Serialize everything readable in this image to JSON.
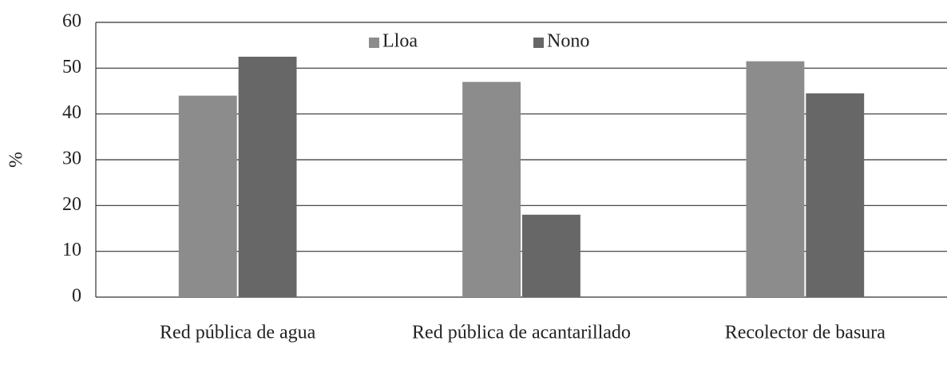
{
  "chart_data": {
    "type": "bar",
    "y_label": "%",
    "categories": [
      "Red pública de agua",
      "Red pública de acantarillado",
      "Recolector de basura"
    ],
    "series": [
      {
        "name": "Lloa",
        "color": "#8c8c8c",
        "values": [
          44,
          47,
          51.5
        ]
      },
      {
        "name": "Nono",
        "color": "#676767",
        "values": [
          52.5,
          18,
          44.5
        ]
      }
    ],
    "ylim": [
      0,
      60
    ],
    "yticks": [
      0,
      10,
      20,
      30,
      40,
      50,
      60
    ],
    "grid": true,
    "legend": "top"
  }
}
